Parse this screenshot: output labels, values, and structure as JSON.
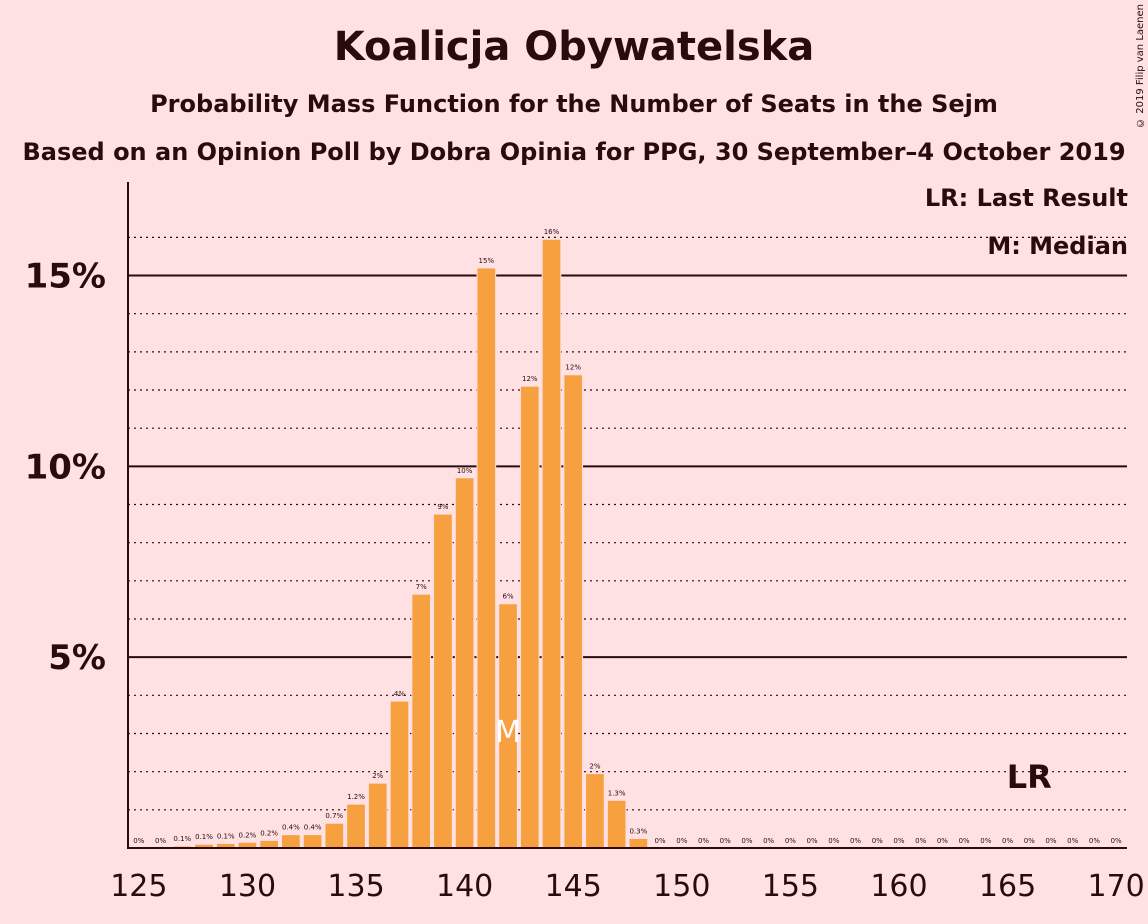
{
  "title": "Koalicja Obywatelska",
  "subtitle": "Probability Mass Function for the Number of Seats in the Sejm",
  "source": "Based on an Opinion Poll by Dobra Opinia for PPG, 30 September–4 October 2019",
  "copyright": "© 2019 Filip van Laenen",
  "legend": {
    "last_result": "LR: Last Result",
    "median": "M: Median"
  },
  "markers": {
    "median_label": "M",
    "last_result_label": "LR",
    "median_seat": 142,
    "last_result_seat": 166
  },
  "colors": {
    "bar": "#f7a040",
    "background": "#ffe1e4",
    "text": "#2a0a0c"
  },
  "chart_data": {
    "type": "bar",
    "xlim": [
      125,
      170
    ],
    "ylim": [
      0,
      17
    ],
    "grid": "horizontal dotted minor, solid at 5% steps",
    "x_ticks": [
      125,
      130,
      135,
      140,
      145,
      150,
      155,
      160,
      165,
      170
    ],
    "y_ticks": [
      {
        "value": 5,
        "label": "5%"
      },
      {
        "value": 10,
        "label": "10%"
      },
      {
        "value": 15,
        "label": "15%"
      }
    ],
    "bars": [
      {
        "seat": 125,
        "value": 0,
        "label": "0%"
      },
      {
        "seat": 126,
        "value": 0,
        "label": "0%"
      },
      {
        "seat": 127,
        "value": 0.05,
        "label": "0.1%"
      },
      {
        "seat": 128,
        "value": 0.1,
        "label": "0.1%"
      },
      {
        "seat": 129,
        "value": 0.12,
        "label": "0.1%"
      },
      {
        "seat": 130,
        "value": 0.15,
        "label": "0.2%"
      },
      {
        "seat": 131,
        "value": 0.2,
        "label": "0.2%"
      },
      {
        "seat": 132,
        "value": 0.35,
        "label": "0.4%"
      },
      {
        "seat": 133,
        "value": 0.35,
        "label": "0.4%"
      },
      {
        "seat": 134,
        "value": 0.65,
        "label": "0.7%"
      },
      {
        "seat": 135,
        "value": 1.15,
        "label": "1.2%"
      },
      {
        "seat": 136,
        "value": 1.7,
        "label": "2%"
      },
      {
        "seat": 137,
        "value": 3.85,
        "label": "4%"
      },
      {
        "seat": 138,
        "value": 6.65,
        "label": "7%"
      },
      {
        "seat": 139,
        "value": 8.75,
        "label": "9%"
      },
      {
        "seat": 140,
        "value": 9.7,
        "label": "10%"
      },
      {
        "seat": 141,
        "value": 15.2,
        "label": "15%"
      },
      {
        "seat": 142,
        "value": 6.4,
        "label": "6%"
      },
      {
        "seat": 143,
        "value": 12.1,
        "label": "12%"
      },
      {
        "seat": 144,
        "value": 15.95,
        "label": "16%"
      },
      {
        "seat": 145,
        "value": 12.4,
        "label": "12%"
      },
      {
        "seat": 146,
        "value": 1.95,
        "label": "2%"
      },
      {
        "seat": 147,
        "value": 1.25,
        "label": "1.3%"
      },
      {
        "seat": 148,
        "value": 0.25,
        "label": "0.3%"
      },
      {
        "seat": 149,
        "value": 0,
        "label": "0%"
      },
      {
        "seat": 150,
        "value": 0,
        "label": "0%"
      },
      {
        "seat": 151,
        "value": 0,
        "label": "0%"
      },
      {
        "seat": 152,
        "value": 0,
        "label": "0%"
      },
      {
        "seat": 153,
        "value": 0,
        "label": "0%"
      },
      {
        "seat": 154,
        "value": 0,
        "label": "0%"
      },
      {
        "seat": 155,
        "value": 0,
        "label": "0%"
      },
      {
        "seat": 156,
        "value": 0,
        "label": "0%"
      },
      {
        "seat": 157,
        "value": 0,
        "label": "0%"
      },
      {
        "seat": 158,
        "value": 0,
        "label": "0%"
      },
      {
        "seat": 159,
        "value": 0,
        "label": "0%"
      },
      {
        "seat": 160,
        "value": 0,
        "label": "0%"
      },
      {
        "seat": 161,
        "value": 0,
        "label": "0%"
      },
      {
        "seat": 162,
        "value": 0,
        "label": "0%"
      },
      {
        "seat": 163,
        "value": 0,
        "label": "0%"
      },
      {
        "seat": 164,
        "value": 0,
        "label": "0%"
      },
      {
        "seat": 165,
        "value": 0,
        "label": "0%"
      },
      {
        "seat": 166,
        "value": 0,
        "label": "0%"
      },
      {
        "seat": 167,
        "value": 0,
        "label": "0%"
      },
      {
        "seat": 168,
        "value": 0,
        "label": "0%"
      },
      {
        "seat": 169,
        "value": 0,
        "label": "0%"
      },
      {
        "seat": 170,
        "value": 0,
        "label": "0%"
      }
    ]
  }
}
